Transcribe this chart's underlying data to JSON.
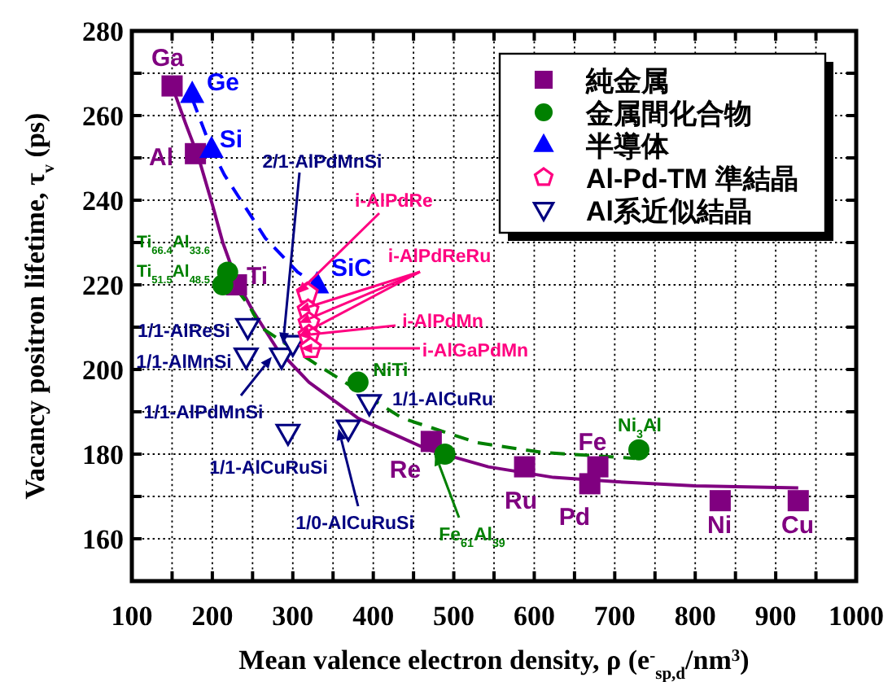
{
  "chart_data": {
    "type": "scatter",
    "xlabel": "Mean valence electron density, ρ (e$^{-}$$_{sp,d}$/nm$^{3}$)",
    "ylabel": "Vacancy positron lifetime, τ$_{v}$ (ps)",
    "xlim": [
      100,
      1000
    ],
    "ylim": [
      150,
      280
    ],
    "xticks": [
      100,
      {
        "value": 150,
        "label": null
      },
      200,
      {
        "value": 250,
        "label": null
      },
      300,
      {
        "value": 350,
        "label": null
      },
      400,
      {
        "value": 450,
        "label": null
      },
      500,
      {
        "value": 550,
        "label": null
      },
      600,
      {
        "value": 650,
        "label": null
      },
      700,
      {
        "value": 750,
        "label": null
      },
      800,
      {
        "value": 850,
        "label": null
      },
      900,
      {
        "value": 950,
        "label": null
      },
      1000
    ],
    "yticks": [
      {
        "value": 150,
        "label": null
      },
      160,
      {
        "value": 170,
        "label": null
      },
      180,
      {
        "value": 190,
        "label": null
      },
      200,
      {
        "value": 210,
        "label": null
      },
      220,
      {
        "value": 230,
        "label": null
      },
      240,
      {
        "value": 250,
        "label": null
      },
      260,
      {
        "value": 270,
        "label": null
      },
      280
    ],
    "grid": true,
    "legend": "top right",
    "series": [
      {
        "type": "line",
        "line_style": "solid",
        "marker": "none",
        "color": "#800080",
        "x": [
          150,
          167,
          183,
          200,
          213,
          230,
          250,
          280,
          320,
          381,
          469,
          543,
          624,
          700,
          800,
          928
        ],
        "values": [
          267,
          258,
          250,
          239,
          230,
          221,
          214,
          205,
          197,
          188.5,
          181,
          177,
          174.5,
          173.5,
          172.5,
          172
        ]
      },
      {
        "type": "line",
        "line_style": "dashed",
        "marker": "none",
        "color": "#0000ff",
        "x": [
          175,
          199,
          215,
          266,
          306,
          322
        ],
        "values": [
          264,
          252,
          246,
          231,
          223,
          221
        ]
      },
      {
        "type": "line",
        "line_style": "dashed",
        "marker": "none",
        "color": "#008000",
        "x": [
          230,
          246,
          260,
          327,
          436,
          529,
          610,
          725
        ],
        "values": [
          219,
          215,
          210,
          201.5,
          188.5,
          182.7,
          180.4,
          179
        ]
      },
      {
        "name": "純金属",
        "marker": "square",
        "color": "#800080",
        "x": [
          150,
          179,
          230,
          472,
          588,
          669,
          679,
          831,
          928
        ],
        "values": [
          267,
          251,
          220,
          183,
          177,
          173,
          177,
          169,
          169
        ]
      },
      {
        "name": "金属間化合物",
        "marker": "circle",
        "color": "#008000",
        "x": [
          219,
          213,
          381,
          489,
          730
        ],
        "values": [
          223,
          220,
          197,
          180,
          181
        ]
      },
      {
        "name": "半導体",
        "marker": "triangle",
        "color": "#0000ff",
        "x": [
          175,
          199,
          330
        ],
        "values": [
          265,
          252,
          220
        ]
      },
      {
        "name": "Al-Pd-TM 準結晶",
        "color": "#ff0080",
        "x": [
          318,
          319,
          320,
          320,
          322
        ],
        "values": [
          218,
          214,
          211,
          208,
          205
        ]
      },
      {
        "name": "Al系近似結晶",
        "marker": "triangle-down",
        "color": "#000080",
        "x": [
          244,
          242,
          286,
          300,
          395,
          294,
          369
        ],
        "values": [
          210,
          203,
          203,
          206,
          192,
          185,
          186
        ]
      }
    ],
    "annotations": [
      {
        "text": "Ga",
        "x": 150,
        "y": 267
      },
      {
        "text": "Ge",
        "x": 175,
        "y": 265
      },
      {
        "text": "Si",
        "x": 199,
        "y": 252
      },
      {
        "text": "Al",
        "x": 179,
        "y": 251
      },
      {
        "text": "Ti",
        "x": 230,
        "y": 220
      },
      {
        "text": "Ti$_{66.4}$Al$_{33.6}$",
        "x": 219,
        "y": 223
      },
      {
        "text": "Ti$_{51.5}$Al$_{48.5}$",
        "x": 213,
        "y": 220
      },
      {
        "text": "SiC",
        "x": 330,
        "y": 220
      },
      {
        "text": "2/1-AlPdMnSi",
        "x": 300,
        "y": 206
      },
      {
        "text": "i-AlPdRe",
        "x": 318,
        "y": 218
      },
      {
        "text": "i-AlPdReRu",
        "x": 319,
        "y": 214
      },
      {
        "text": "i-AlPdMn",
        "x": 320,
        "y": 208
      },
      {
        "text": "i-AlGaPdMn",
        "x": 322,
        "y": 205
      },
      {
        "text": "NiTi",
        "x": 381,
        "y": 197
      },
      {
        "text": "1/1-AlReSi",
        "x": 244,
        "y": 210
      },
      {
        "text": "1/1-AlMnSi",
        "x": 242,
        "y": 203
      },
      {
        "text": "1/1-AlPdMnSi",
        "x": 286,
        "y": 203
      },
      {
        "text": "1/1-AlCuRu",
        "x": 395,
        "y": 192
      },
      {
        "text": "1/1-AlCuRuSi",
        "x": 294,
        "y": 185
      },
      {
        "text": "1/0-AlCuRuSi",
        "x": 369,
        "y": 186
      },
      {
        "text": "Re",
        "x": 472,
        "y": 183
      },
      {
        "text": "Fe$_{61}$Al$_{39}$",
        "x": 489,
        "y": 180
      },
      {
        "text": "Ru",
        "x": 588,
        "y": 177
      },
      {
        "text": "Fe",
        "x": 679,
        "y": 177
      },
      {
        "text": "Ni$_{3}$Al",
        "x": 730,
        "y": 181
      },
      {
        "text": "Pd",
        "x": 669,
        "y": 173
      },
      {
        "text": "Ni",
        "x": 831,
        "y": 169
      },
      {
        "text": "Cu",
        "x": 928,
        "y": 169
      }
    ]
  }
}
